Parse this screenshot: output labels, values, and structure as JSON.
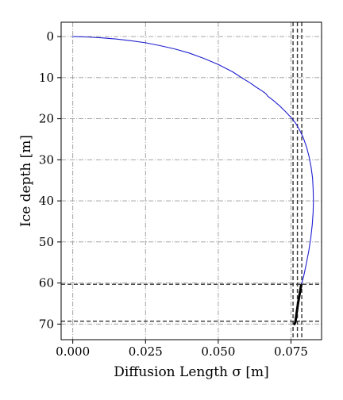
{
  "chart_data": {
    "type": "line",
    "title": "",
    "xlabel": "Diffusion Length σ [m]",
    "ylabel": "Ice depth [m]",
    "xlim": [
      -0.004,
      0.0855
    ],
    "ylim": [
      -3.5,
      73.8
    ],
    "y_inverted": true,
    "grid": true,
    "grid_style": "dash-dot",
    "xticks": [
      0.0,
      0.025,
      0.05,
      0.075
    ],
    "xtick_labels": [
      "0.000",
      "0.025",
      "0.050",
      "0.075"
    ],
    "yticks": [
      0,
      10,
      20,
      30,
      40,
      50,
      60,
      70
    ],
    "ytick_labels": [
      "0",
      "10",
      "20",
      "30",
      "40",
      "50",
      "60",
      "70"
    ],
    "series": [
      {
        "color": "#1f1fd0",
        "points": [
          [
            0.0,
            0.0
          ],
          [
            0.005,
            0.1
          ],
          [
            0.01,
            0.3
          ],
          [
            0.015,
            0.6
          ],
          [
            0.02,
            1.0
          ],
          [
            0.025,
            1.5
          ],
          [
            0.03,
            2.2
          ],
          [
            0.035,
            3.0
          ],
          [
            0.04,
            4.0
          ],
          [
            0.045,
            5.3
          ],
          [
            0.05,
            6.8
          ],
          [
            0.055,
            8.6
          ],
          [
            0.058,
            10.0
          ],
          [
            0.061,
            11.3
          ],
          [
            0.063,
            12.3
          ],
          [
            0.065,
            13.2
          ],
          [
            0.066,
            13.7
          ],
          [
            0.0665,
            14.0
          ],
          [
            0.067,
            14.5
          ],
          [
            0.069,
            15.6
          ],
          [
            0.071,
            16.8
          ],
          [
            0.073,
            18.2
          ],
          [
            0.075,
            19.7
          ],
          [
            0.0765,
            21.0
          ],
          [
            0.078,
            22.8
          ],
          [
            0.0792,
            24.6
          ],
          [
            0.0803,
            26.8
          ],
          [
            0.0812,
            29.2
          ],
          [
            0.0819,
            31.8
          ],
          [
            0.0824,
            34.4
          ],
          [
            0.0826,
            37.0
          ],
          [
            0.0827,
            40.0
          ],
          [
            0.0826,
            42.8
          ],
          [
            0.0823,
            45.8
          ],
          [
            0.0818,
            49.0
          ],
          [
            0.0811,
            52.2
          ],
          [
            0.0802,
            55.5
          ],
          [
            0.0793,
            58.5
          ],
          [
            0.0785,
            60.5
          ]
        ]
      },
      {
        "color": "#000000",
        "linewidth": "thick",
        "points": [
          [
            0.0785,
            60.5
          ],
          [
            0.0774,
            65.0
          ],
          [
            0.0765,
            69.5
          ],
          [
            0.0762,
            70.0
          ]
        ]
      }
    ],
    "reference_lines": {
      "vertical_x": [
        0.0757,
        0.0772,
        0.0787
      ],
      "horizontal_y": [
        60.3,
        69.3
      ],
      "style": "dashed",
      "color": "#333333"
    }
  }
}
